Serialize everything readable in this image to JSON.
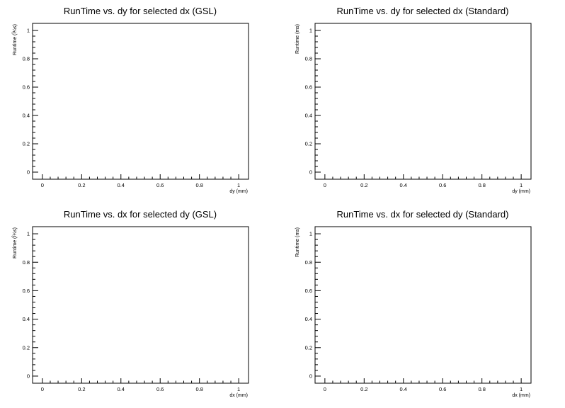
{
  "chart_data": [
    {
      "type": "scatter",
      "title": "RunTime vs. dy for selected dx (GSL)",
      "xlabel": "dy (mm)",
      "ylabel": "Runtime (Î¼s)",
      "xlim": [
        -0.05,
        1.05
      ],
      "ylim": [
        -0.05,
        1.05
      ],
      "xticks": [
        "0",
        "0.2",
        "0.4",
        "0.6",
        "0.8",
        "1"
      ],
      "yticks": [
        "0",
        "0.2",
        "0.4",
        "0.6",
        "0.8",
        "1"
      ],
      "series": [],
      "grid": false
    },
    {
      "type": "scatter",
      "title": "RunTime vs. dy for selected dx (Standard)",
      "xlabel": "dy (mm)",
      "ylabel": "Runtime (ms)",
      "xlim": [
        -0.05,
        1.05
      ],
      "ylim": [
        -0.05,
        1.05
      ],
      "xticks": [
        "0",
        "0.2",
        "0.4",
        "0.6",
        "0.8",
        "1"
      ],
      "yticks": [
        "0",
        "0.2",
        "0.4",
        "0.6",
        "0.8",
        "1"
      ],
      "series": [],
      "grid": false
    },
    {
      "type": "scatter",
      "title": "RunTime vs. dx for selected dy (GSL)",
      "xlabel": "dx (mm)",
      "ylabel": "Runtime (Î¼s)",
      "xlim": [
        -0.05,
        1.05
      ],
      "ylim": [
        -0.05,
        1.05
      ],
      "xticks": [
        "0",
        "0.2",
        "0.4",
        "0.6",
        "0.8",
        "1"
      ],
      "yticks": [
        "0",
        "0.2",
        "0.4",
        "0.6",
        "0.8",
        "1"
      ],
      "series": [],
      "grid": false
    },
    {
      "type": "scatter",
      "title": "RunTime vs. dx for selected dy (Standard)",
      "xlabel": "dx (mm)",
      "ylabel": "Runtime (ms)",
      "xlim": [
        -0.05,
        1.05
      ],
      "ylim": [
        -0.05,
        1.05
      ],
      "xticks": [
        "0",
        "0.2",
        "0.4",
        "0.6",
        "0.8",
        "1"
      ],
      "yticks": [
        "0",
        "0.2",
        "0.4",
        "0.6",
        "0.8",
        "1"
      ],
      "series": [],
      "grid": false
    }
  ]
}
